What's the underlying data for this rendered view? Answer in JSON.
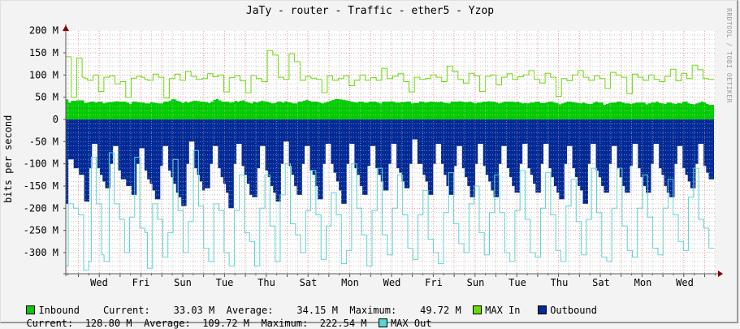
{
  "title": "JaTy - router - Traffic - ether5 - Yzop",
  "watermark": "RRDTOOL / TOBI OETIKER",
  "colors": {
    "inbound": "#00cc00",
    "max_in": "#66dd00",
    "outbound": "#002a97",
    "max_out": "#55d6d3",
    "grid_major": "#e5a0a0",
    "grid_minor": "#cfcfcf",
    "axis": "#555555",
    "arrow": "#880000",
    "canvas": "#ffffff",
    "background": "#f3f3f3"
  },
  "legend": {
    "inbound": {
      "label": "Inbound",
      "current_label": "Current:",
      "current": "33.03 M",
      "average_label": "Average:",
      "average": "34.15 M",
      "maximum_label": "Maximum:",
      "maximum": "49.72 M"
    },
    "max_in": {
      "label": "MAX In"
    },
    "outbound": {
      "label": "Outbound",
      "current_label": "Current:",
      "current": "128.80 M",
      "average_label": "Average:",
      "average": "109.72 M",
      "maximum_label": "Maximum:",
      "maximum": "222.54 M"
    },
    "max_out": {
      "label": "MAX Out"
    }
  },
  "chart_data": {
    "type": "area",
    "title": "JaTy - router - Traffic - ether5 - Yzop",
    "ylabel": "bits per second",
    "xlabel": "",
    "ylim": [
      -345,
      200
    ],
    "yticks": [
      200,
      150,
      100,
      50,
      0,
      -50,
      -100,
      -150,
      -200,
      -250,
      -300
    ],
    "ytick_labels": [
      "200 M",
      "150 M",
      "100 M",
      "50 M",
      "0",
      "-50 M",
      "-100 M",
      "-150 M",
      "-200 M",
      "-250 M",
      "-300 M"
    ],
    "xtick_labels": [
      "Wed",
      "Fri",
      "Sun",
      "Tue",
      "Thu",
      "Sat",
      "Mon",
      "Wed",
      "Fri",
      "Sun",
      "Tue",
      "Thu",
      "Sat",
      "Mon",
      "Wed"
    ],
    "grid": true,
    "legend_position": "bottom",
    "units": "M bits/s",
    "series": [
      {
        "name": "Inbound",
        "style": "area",
        "values": [
          45,
          38,
          42,
          42,
          43,
          43,
          43,
          37,
          38,
          40,
          40,
          38,
          40,
          40,
          36,
          38,
          39,
          39,
          40,
          41,
          40,
          40,
          40,
          38,
          35,
          40,
          40,
          39,
          38,
          38,
          36,
          36,
          39,
          38,
          37,
          36,
          36,
          40,
          40,
          42,
          46,
          45,
          42,
          40,
          37,
          40,
          38,
          40,
          42,
          42,
          41,
          40,
          40,
          39,
          37,
          40,
          44,
          46,
          43,
          40,
          40,
          40,
          38,
          39,
          42,
          40,
          42,
          43,
          40,
          38,
          36,
          40,
          38,
          40,
          42,
          41,
          40,
          38,
          36,
          37,
          40,
          40,
          38,
          41,
          39,
          38,
          36,
          36,
          40,
          40,
          42,
          44,
          42,
          40,
          40,
          40,
          38,
          36,
          38,
          40,
          42,
          44,
          46,
          46,
          45,
          44,
          43,
          42,
          40,
          39,
          38,
          40,
          40,
          38,
          38,
          40,
          40,
          40,
          38,
          36,
          40,
          40,
          40,
          41,
          40,
          38,
          38,
          39,
          39,
          40,
          40,
          36,
          37,
          37,
          40,
          40,
          38,
          39,
          40,
          40,
          39,
          39,
          40,
          38,
          37,
          36,
          40,
          40,
          40,
          41,
          40,
          39,
          39,
          40,
          38,
          36,
          38,
          38,
          40,
          40,
          41,
          40,
          40,
          38,
          36,
          38,
          40,
          40,
          40,
          40,
          39,
          40,
          38,
          36,
          37,
          36,
          38,
          38,
          40,
          40,
          37,
          37,
          38,
          40,
          40,
          38,
          37,
          34,
          36,
          38,
          40,
          40,
          39,
          38,
          37,
          36,
          38,
          36,
          35,
          35,
          38,
          40,
          38,
          38,
          33,
          35,
          37,
          38,
          38,
          40,
          40,
          38,
          36,
          36,
          35,
          36,
          38,
          38,
          38,
          38,
          34,
          36,
          38,
          38,
          40,
          37,
          36,
          35,
          38,
          38,
          36,
          35,
          37,
          36,
          40,
          40,
          36,
          35,
          34,
          36,
          38,
          40,
          38,
          35,
          33,
          33
        ]
      },
      {
        "name": "MAX In",
        "style": "line",
        "values": [
          141,
          141,
          50,
          50,
          138,
          138,
          95,
          92,
          88,
          88,
          100,
          100,
          63,
          63,
          95,
          95,
          98,
          98,
          80,
          80,
          85,
          85,
          50,
          50,
          93,
          93,
          97,
          97,
          95,
          90,
          88,
          88,
          102,
          102,
          95,
          95,
          48,
          48,
          92,
          92,
          102,
          102,
          88,
          88,
          108,
          108,
          97,
          97,
          90,
          90,
          92,
          92,
          103,
          103,
          96,
          96,
          100,
          100,
          62,
          62,
          94,
          94,
          98,
          98,
          87,
          87,
          60,
          60,
          99,
          99,
          92,
          92,
          85,
          85,
          155,
          155,
          145,
          145,
          95,
          95,
          90,
          90,
          148,
          148,
          130,
          130,
          88,
          88,
          97,
          97,
          93,
          93,
          90,
          90,
          60,
          60,
          98,
          98,
          88,
          88,
          92,
          92,
          98,
          98,
          76,
          76,
          88,
          88,
          100,
          100,
          88,
          88,
          94,
          94,
          88,
          88,
          115,
          115,
          92,
          92,
          97,
          97,
          103,
          103,
          85,
          85,
          62,
          62,
          95,
          95,
          90,
          90,
          92,
          92,
          100,
          100,
          95,
          95,
          85,
          85,
          120,
          120,
          108,
          108,
          90,
          90,
          82,
          82,
          104,
          104,
          98,
          98,
          63,
          63,
          97,
          97,
          100,
          100,
          78,
          78,
          95,
          95,
          103,
          103,
          90,
          90,
          96,
          96,
          100,
          100,
          110,
          110,
          90,
          90,
          82,
          82,
          104,
          104,
          95,
          95,
          52,
          52,
          92,
          92,
          87,
          87,
          100,
          100,
          110,
          110,
          95,
          95,
          88,
          88,
          98,
          98,
          92,
          92,
          70,
          70,
          106,
          106,
          100,
          100,
          95,
          95,
          58,
          58,
          102,
          102,
          95,
          95,
          88,
          88,
          100,
          100,
          90,
          90,
          85,
          85,
          97,
          97,
          113,
          113,
          87,
          87,
          104,
          104,
          92,
          92,
          122,
          122,
          112,
          112,
          92,
          92,
          90,
          90
        ]
      },
      {
        "name": "Outbound",
        "style": "area",
        "values": [
          -190,
          -90,
          -90,
          -110,
          -110,
          -125,
          -125,
          -185,
          -185,
          -110,
          -55,
          -55,
          -110,
          -125,
          -140,
          -155,
          -155,
          -100,
          -60,
          -60,
          -115,
          -135,
          -135,
          -150,
          -150,
          -170,
          -170,
          -100,
          -65,
          -65,
          -115,
          -135,
          -145,
          -160,
          -180,
          -180,
          -105,
          -60,
          -60,
          -115,
          -130,
          -145,
          -165,
          -175,
          -195,
          -195,
          -100,
          -50,
          -50,
          -110,
          -125,
          -140,
          -160,
          -155,
          -155,
          -100,
          -60,
          -60,
          -110,
          -130,
          -145,
          -165,
          -200,
          -200,
          -100,
          -55,
          -55,
          -105,
          -125,
          -145,
          -170,
          -175,
          -175,
          -110,
          -60,
          -60,
          -115,
          -130,
          -150,
          -165,
          -185,
          -185,
          -100,
          -50,
          -50,
          -105,
          -125,
          -150,
          -170,
          -170,
          -100,
          -60,
          -60,
          -115,
          -125,
          -150,
          -180,
          -180,
          -100,
          -55,
          -55,
          -100,
          -120,
          -140,
          -160,
          -190,
          -190,
          -100,
          -55,
          -55,
          -110,
          -125,
          -150,
          -170,
          -170,
          -105,
          -60,
          -60,
          -110,
          -125,
          -140,
          -160,
          -160,
          -100,
          -55,
          -55,
          -110,
          -120,
          -140,
          -155,
          -155,
          -100,
          -45,
          -45,
          -100,
          -100,
          -125,
          -140,
          -170,
          -170,
          -100,
          -55,
          -55,
          -100,
          -125,
          -150,
          -170,
          -170,
          -105,
          -60,
          -60,
          -110,
          -130,
          -150,
          -175,
          -175,
          -100,
          -55,
          -55,
          -105,
          -125,
          -140,
          -160,
          -175,
          -175,
          -100,
          -60,
          -60,
          -110,
          -130,
          -150,
          -165,
          -165,
          -100,
          -55,
          -55,
          -110,
          -125,
          -145,
          -165,
          -165,
          -100,
          -55,
          -55,
          -110,
          -130,
          -150,
          -165,
          -180,
          -180,
          -100,
          -60,
          -60,
          -110,
          -130,
          -150,
          -160,
          -190,
          -190,
          -100,
          -55,
          -55,
          -115,
          -130,
          -150,
          -165,
          -165,
          -100,
          -60,
          -60,
          -110,
          -130,
          -150,
          -165,
          -165,
          -105,
          -55,
          -55,
          -110,
          -130,
          -150,
          -165,
          -165,
          -100,
          -55,
          -55,
          -110,
          -125,
          -150,
          -165,
          -175,
          -175,
          -100,
          -60,
          -60,
          -110,
          -125,
          -140,
          -155,
          -155,
          -100,
          -55,
          -55,
          -105,
          -120,
          -135,
          -135
        ]
      },
      {
        "name": "MAX Out",
        "style": "line",
        "values": [
          -330,
          -190,
          -190,
          -200,
          -200,
          -215,
          -215,
          -340,
          -340,
          -320,
          -85,
          -85,
          -190,
          -190,
          -305,
          -320,
          -320,
          -75,
          -75,
          -190,
          -190,
          -225,
          -225,
          -300,
          -300,
          -220,
          -220,
          -85,
          -85,
          -245,
          -245,
          -255,
          -335,
          -335,
          -190,
          -190,
          -225,
          -225,
          -310,
          -310,
          -255,
          -255,
          -90,
          -90,
          -205,
          -205,
          -300,
          -300,
          -230,
          -230,
          -70,
          -70,
          -195,
          -195,
          -290,
          -290,
          -320,
          -320,
          -190,
          -190,
          -205,
          -205,
          -300,
          -300,
          -330,
          -330,
          -205,
          -205,
          -125,
          -125,
          -255,
          -255,
          -275,
          -275,
          -330,
          -330,
          -200,
          -200,
          -125,
          -125,
          -240,
          -240,
          -320,
          -320,
          -170,
          -170,
          -100,
          -100,
          -235,
          -235,
          -260,
          -260,
          -300,
          -300,
          -205,
          -205,
          -115,
          -115,
          -215,
          -215,
          -315,
          -315,
          -240,
          -240,
          -165,
          -165,
          -215,
          -215,
          -325,
          -325,
          -295,
          -295,
          -100,
          -100,
          -200,
          -200,
          -260,
          -260,
          -330,
          -330,
          -205,
          -205,
          -110,
          -110,
          -260,
          -260,
          -305,
          -305,
          -200,
          -200,
          -125,
          -125,
          -215,
          -215,
          -290,
          -290,
          -315,
          -315,
          -215,
          -215,
          -160,
          -160,
          -270,
          -270,
          -300,
          -300,
          -325,
          -325,
          -210,
          -210,
          -120,
          -120,
          -235,
          -235,
          -280,
          -280,
          -300,
          -300,
          -190,
          -190,
          -150,
          -150,
          -255,
          -255,
          -305,
          -305,
          -210,
          -210,
          -125,
          -125,
          -210,
          -210,
          -300,
          -300,
          -320,
          -320,
          -205,
          -205,
          -115,
          -115,
          -225,
          -225,
          -300,
          -300,
          -310,
          -310,
          -200,
          -200,
          -120,
          -120,
          -215,
          -215,
          -295,
          -295,
          -320,
          -320,
          -195,
          -195,
          -135,
          -135,
          -230,
          -230,
          -305,
          -305,
          -225,
          -225,
          -110,
          -110,
          -210,
          -210,
          -310,
          -310,
          -320,
          -320,
          -200,
          -200,
          -110,
          -110,
          -240,
          -240,
          -295,
          -295,
          -310,
          -310,
          -200,
          -200,
          -125,
          -125,
          -220,
          -220,
          -290,
          -290,
          -305,
          -305,
          -200,
          -200,
          -135,
          -135,
          -215,
          -215,
          -275,
          -275,
          -295,
          -295,
          -175,
          -175,
          -110,
          -110,
          -225,
          -225,
          -245,
          -245,
          -290,
          -290
        ]
      }
    ]
  }
}
